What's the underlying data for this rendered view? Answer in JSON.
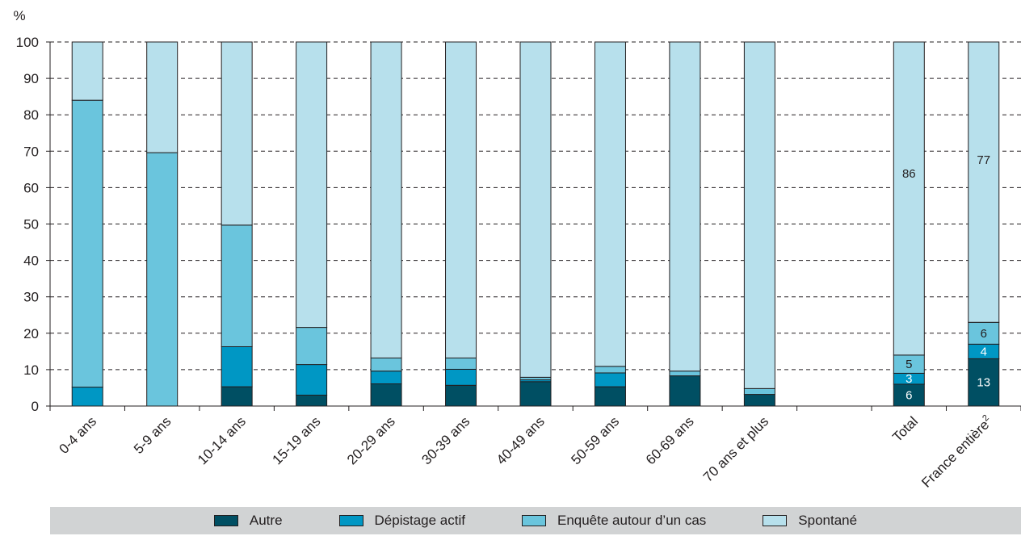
{
  "chart_data": {
    "type": "bar",
    "stacked": true,
    "y_unit": "%",
    "ylim": [
      0,
      100
    ],
    "yticks": [
      0,
      10,
      20,
      30,
      40,
      50,
      60,
      70,
      80,
      90,
      100
    ],
    "grid": "horizontal dashed",
    "legend_position": "bottom",
    "categories": [
      "0-4 ans",
      "5-9 ans",
      "10-14 ans",
      "15-19 ans",
      "20-29 ans",
      "30-39 ans",
      "40-49 ans",
      "50-59 ans",
      "60-69 ans",
      "70 ans et plus",
      "",
      "Total",
      "France entière"
    ],
    "footnote_marks": {
      "12": "2"
    },
    "series": [
      {
        "name": "Autre",
        "color": "#004f63",
        "values": [
          0,
          0,
          5.3,
          3,
          6.1,
          5.7,
          6.7,
          5.3,
          8.3,
          3.2,
          null,
          6,
          13
        ]
      },
      {
        "name": "Dépistage actif",
        "color": "#0097c4",
        "values": [
          5.2,
          0,
          11,
          8.4,
          3.5,
          4.4,
          0.5,
          3.8,
          0,
          0,
          null,
          3,
          4
        ]
      },
      {
        "name": "Enquête autour d'un cas",
        "color": "#6ac5dd",
        "values": [
          78.8,
          69.6,
          33.4,
          10.2,
          3.6,
          3.1,
          0.7,
          1.8,
          1.3,
          1.6,
          null,
          5,
          6
        ]
      },
      {
        "name": "Spontané",
        "color": "#b7e0ec",
        "values": [
          16,
          30.4,
          50.3,
          78.4,
          86.8,
          86.8,
          92.1,
          89.1,
          90.4,
          95.2,
          null,
          86,
          77
        ]
      }
    ],
    "data_labels": [
      {
        "category": "Total",
        "series": "Autre",
        "text": "6",
        "color": "#ffffff"
      },
      {
        "category": "Total",
        "series": "Dépistage actif",
        "text": "3",
        "color": "#ffffff"
      },
      {
        "category": "Total",
        "series": "Enquête autour d'un cas",
        "text": "5",
        "color": "#231f20"
      },
      {
        "category": "Total",
        "series": "Spontané",
        "text": "86",
        "color": "#231f20"
      },
      {
        "category": "France entière",
        "series": "Autre",
        "text": "13",
        "color": "#ffffff"
      },
      {
        "category": "France entière",
        "series": "Dépistage actif",
        "text": "4",
        "color": "#ffffff"
      },
      {
        "category": "France entière",
        "series": "Enquête autour d'un cas",
        "text": "6",
        "color": "#231f20"
      },
      {
        "category": "France entière",
        "series": "Spontané",
        "text": "77",
        "color": "#231f20"
      }
    ]
  },
  "legend": {
    "items": [
      {
        "label": "Autre",
        "color": "#004f63"
      },
      {
        "label": "Dépistage actif",
        "color": "#0097c4"
      },
      {
        "label": "Enquête autour d’un cas",
        "color": "#6ac5dd"
      },
      {
        "label": "Spontané",
        "color": "#b7e0ec"
      }
    ]
  }
}
